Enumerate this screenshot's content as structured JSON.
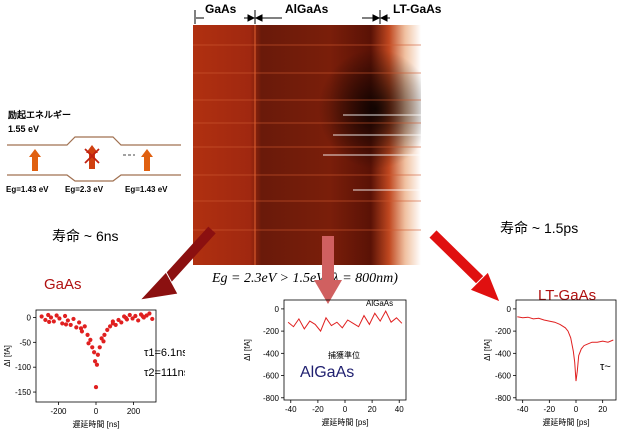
{
  "regions": {
    "gaas": "GaAs",
    "algaas": "AlGaAs",
    "ltgaas": "LT-GaAs"
  },
  "band_diagram": {
    "title": "励起エネルギー",
    "energy": "1.55 eV",
    "gap_left": "Eg=1.43 eV",
    "gap_mid": "Eg=2.3 eV",
    "gap_right": "Eg=1.43 eV"
  },
  "lifetime_left": "寿命 ~ 6ns",
  "lifetime_right": "寿命 ~ 1.5ps",
  "equation": "Eg = 2.3eV > 1.5eV  (λ = 800nm)",
  "colors": {
    "arrow_gaas": "#8b1010",
    "arrow_algaas": "#d06060",
    "arrow_lt": "#e01010",
    "trace": "#e02020"
  },
  "chart_data": [
    {
      "type": "scatter",
      "title": "GaAs",
      "xlabel": "遅延時間 [ns]",
      "ylabel": "ΔI [fA]",
      "xlim": [
        -320,
        320
      ],
      "ylim": [
        -170,
        15
      ],
      "xticks": [
        "-200",
        "0",
        "200"
      ],
      "yticks": [
        "0",
        "-50",
        "-100",
        "-150"
      ],
      "annotations": [
        "τ1=6.1ns",
        "τ2=111ns"
      ],
      "x": [
        -290,
        -270,
        -255,
        -240,
        -225,
        -210,
        -195,
        -180,
        -165,
        -150,
        -135,
        -120,
        -105,
        -90,
        -75,
        -60,
        -45,
        -30,
        -20,
        -10,
        -5,
        0,
        5,
        10,
        20,
        30,
        45,
        60,
        75,
        90,
        105,
        120,
        135,
        150,
        165,
        180,
        195,
        210,
        225,
        240,
        255,
        270,
        285,
        300,
        -250,
        -160,
        -80,
        -40,
        40,
        90,
        160,
        250
      ],
      "y": [
        2,
        -5,
        5,
        0,
        -8,
        4,
        -2,
        -12,
        3,
        -6,
        -15,
        -3,
        -20,
        -10,
        -28,
        -18,
        -35,
        -45,
        -60,
        -70,
        -88,
        -140,
        -95,
        -75,
        -60,
        -42,
        -35,
        -25,
        -18,
        -8,
        -15,
        -5,
        -10,
        2,
        -4,
        5,
        -2,
        3,
        -6,
        6,
        0,
        4,
        8,
        -3,
        -9,
        -14,
        -22,
        -52,
        -48,
        -12,
        -1,
        2
      ]
    },
    {
      "type": "line",
      "title": "AlGaAs",
      "xlabel": "遅延時間 [ps]",
      "ylabel": "ΔI [fA]",
      "xlim": [
        -45,
        45
      ],
      "ylim": [
        -820,
        80
      ],
      "xticks": [
        "-40",
        "-20",
        "0",
        "20",
        "40"
      ],
      "yticks": [
        "0",
        "-200",
        "-400",
        "-600",
        "-800"
      ],
      "annotations": [
        "AlGaAs",
        "捕獲準位"
      ],
      "x": [
        -42,
        -38,
        -34,
        -30,
        -26,
        -22,
        -18,
        -14,
        -10,
        -6,
        -2,
        2,
        6,
        10,
        14,
        18,
        22,
        26,
        30,
        34,
        38,
        42
      ],
      "y": [
        -120,
        -160,
        -90,
        -180,
        -110,
        -140,
        -200,
        -80,
        -150,
        -120,
        -170,
        -100,
        -130,
        -160,
        -60,
        -140,
        -40,
        -110,
        -20,
        -120,
        -80,
        -130
      ]
    },
    {
      "type": "line",
      "title": "LT-GaAs",
      "xlabel": "遅延時間 [ps]",
      "ylabel": "ΔI [fA]",
      "xlim": [
        -45,
        30
      ],
      "ylim": [
        -820,
        80
      ],
      "xticks": [
        "-40",
        "-20",
        "0",
        "20"
      ],
      "yticks": [
        "0",
        "-200",
        "-400",
        "-600",
        "-800"
      ],
      "annotations": [
        "τ~"
      ],
      "x": [
        -44,
        -40,
        -36,
        -32,
        -28,
        -24,
        -20,
        -16,
        -12,
        -8,
        -6,
        -4,
        -2,
        -1,
        0,
        1,
        2,
        4,
        6,
        8,
        12,
        16,
        20,
        24,
        28
      ],
      "y": [
        -70,
        -80,
        -75,
        -90,
        -85,
        -100,
        -110,
        -120,
        -140,
        -170,
        -200,
        -260,
        -380,
        -480,
        -650,
        -560,
        -420,
        -360,
        -330,
        -320,
        -300,
        -300,
        -290,
        -300,
        -280
      ]
    }
  ]
}
